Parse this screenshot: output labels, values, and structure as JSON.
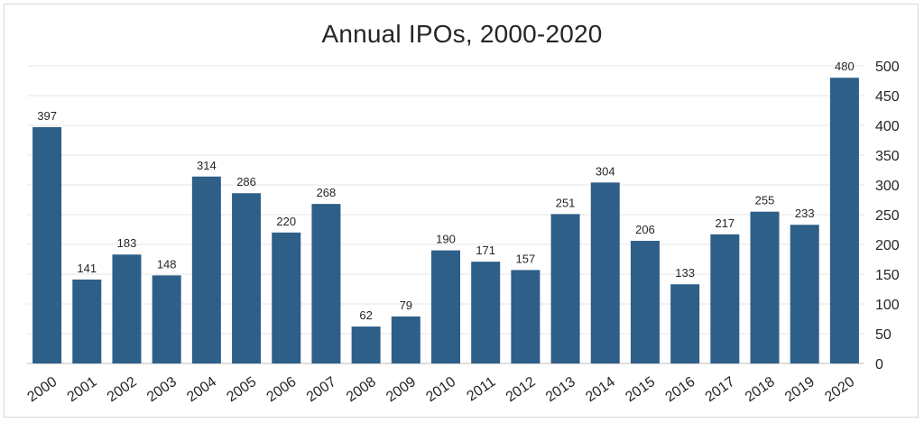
{
  "chart_data": {
    "type": "bar",
    "title": "Annual IPOs, 2000-2020",
    "xlabel": "",
    "ylabel": "",
    "categories": [
      "2000",
      "2001",
      "2002",
      "2003",
      "2004",
      "2005",
      "2006",
      "2007",
      "2008",
      "2009",
      "2010",
      "2011",
      "2012",
      "2013",
      "2014",
      "2015",
      "2016",
      "2017",
      "2018",
      "2019",
      "2020"
    ],
    "values": [
      397,
      141,
      183,
      148,
      314,
      286,
      220,
      268,
      62,
      79,
      190,
      171,
      157,
      251,
      304,
      206,
      133,
      217,
      255,
      233,
      480
    ],
    "ylim": [
      0,
      500
    ],
    "yticks": [
      0,
      50,
      100,
      150,
      200,
      250,
      300,
      350,
      400,
      450,
      500
    ],
    "y_axis_position": "right",
    "grid": true,
    "legend": "none",
    "bar_color": "#2e5f88",
    "data_labels": true
  }
}
